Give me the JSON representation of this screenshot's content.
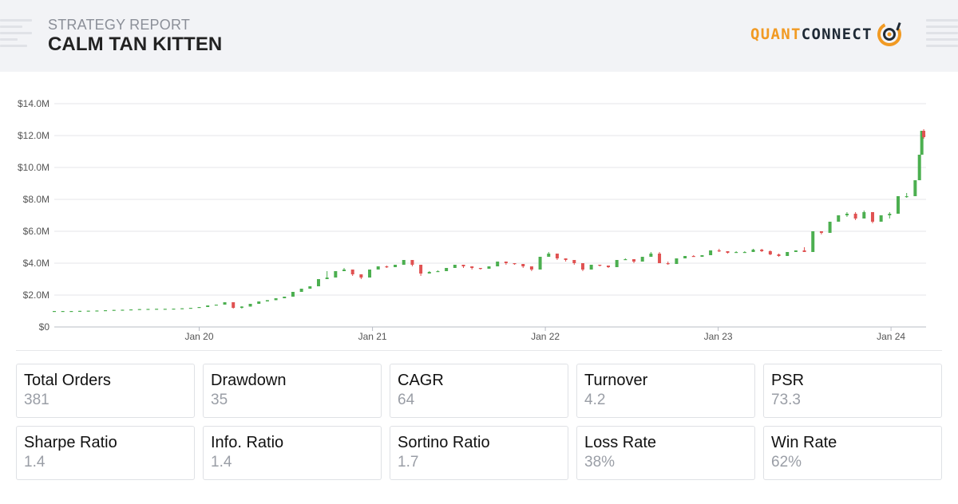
{
  "header": {
    "subtitle": "STRATEGY REPORT",
    "title": "CALM TAN KITTEN",
    "logo": {
      "part1": "QUANT",
      "part2": "CONNECT",
      "accent": "#f19a23",
      "dark": "#1f2a36"
    }
  },
  "chart_data": {
    "type": "candlestick",
    "ylim": [
      0,
      14000000
    ],
    "y_ticks": [
      "$0",
      "$2.0M",
      "$4.0M",
      "$6.0M",
      "$8.0M",
      "$10.0M",
      "$12.0M",
      "$14.0M"
    ],
    "x_range": [
      "2019-03-01",
      "2024-03-15"
    ],
    "x_ticks": [
      {
        "date": "2020-01-01",
        "label": "Jan 20"
      },
      {
        "date": "2021-01-01",
        "label": "Jan 21"
      },
      {
        "date": "2022-01-01",
        "label": "Jan 22"
      },
      {
        "date": "2023-01-01",
        "label": "Jan 23"
      },
      {
        "date": "2024-01-01",
        "label": "Jan 24"
      }
    ],
    "up_color": "#4caf50",
    "down_color": "#e05252",
    "grid": true,
    "series": [
      {
        "values": [
          [
            "2019-03-01",
            1.0,
            1.0,
            1.0,
            1.0
          ],
          [
            "2019-03-19",
            1.0,
            1.0,
            1.0,
            1.0
          ],
          [
            "2019-04-06",
            1.0,
            1.0,
            1.0,
            1.0
          ],
          [
            "2019-04-24",
            1.0,
            1.0,
            1.01,
            1.01
          ],
          [
            "2019-05-12",
            1.01,
            1.01,
            1.02,
            1.02
          ],
          [
            "2019-05-30",
            1.02,
            1.02,
            1.03,
            1.03
          ],
          [
            "2019-06-17",
            1.03,
            1.03,
            1.05,
            1.05
          ],
          [
            "2019-07-05",
            1.05,
            1.05,
            1.07,
            1.07
          ],
          [
            "2019-07-23",
            1.07,
            1.07,
            1.08,
            1.08
          ],
          [
            "2019-08-10",
            1.08,
            1.08,
            1.1,
            1.1
          ],
          [
            "2019-08-28",
            1.1,
            1.1,
            1.12,
            1.12
          ],
          [
            "2019-09-15",
            1.12,
            1.12,
            1.13,
            1.13
          ],
          [
            "2019-10-03",
            1.13,
            1.13,
            1.14,
            1.14
          ],
          [
            "2019-10-21",
            1.14,
            1.14,
            1.14,
            1.14
          ],
          [
            "2019-11-08",
            1.14,
            1.14,
            1.15,
            1.15
          ],
          [
            "2019-11-26",
            1.15,
            1.15,
            1.17,
            1.17
          ],
          [
            "2019-12-14",
            1.17,
            1.17,
            1.2,
            1.2
          ],
          [
            "2020-01-01",
            1.2,
            1.2,
            1.25,
            1.25
          ],
          [
            "2020-01-19",
            1.25,
            1.25,
            1.35,
            1.35
          ],
          [
            "2020-02-06",
            1.35,
            1.35,
            1.4,
            1.4
          ],
          [
            "2020-02-24",
            1.4,
            1.4,
            1.55,
            1.55
          ],
          [
            "2020-03-13",
            1.55,
            1.15,
            1.55,
            1.2
          ],
          [
            "2020-03-31",
            1.2,
            1.15,
            1.3,
            1.28
          ],
          [
            "2020-04-18",
            1.28,
            1.28,
            1.45,
            1.45
          ],
          [
            "2020-05-06",
            1.45,
            1.45,
            1.6,
            1.6
          ],
          [
            "2020-05-24",
            1.6,
            1.6,
            1.68,
            1.68
          ],
          [
            "2020-06-11",
            1.68,
            1.68,
            1.8,
            1.8
          ],
          [
            "2020-06-29",
            1.8,
            1.8,
            1.9,
            1.9
          ],
          [
            "2020-07-17",
            1.9,
            1.9,
            2.2,
            2.2
          ],
          [
            "2020-08-04",
            2.2,
            2.2,
            2.4,
            2.4
          ],
          [
            "2020-08-22",
            2.4,
            2.4,
            2.55,
            2.55
          ],
          [
            "2020-09-09",
            2.55,
            2.55,
            3.0,
            3.0
          ],
          [
            "2020-09-27",
            3.0,
            3.0,
            3.5,
            3.1
          ],
          [
            "2020-10-15",
            3.1,
            3.1,
            3.5,
            3.5
          ],
          [
            "2020-11-02",
            3.5,
            3.5,
            3.7,
            3.6
          ],
          [
            "2020-11-20",
            3.6,
            3.2,
            3.6,
            3.3
          ],
          [
            "2020-12-08",
            3.3,
            3.0,
            3.3,
            3.1
          ],
          [
            "2020-12-26",
            3.1,
            3.1,
            3.6,
            3.6
          ],
          [
            "2021-01-13",
            3.6,
            3.6,
            3.8,
            3.8
          ],
          [
            "2021-01-31",
            3.8,
            3.7,
            3.85,
            3.75
          ],
          [
            "2021-02-18",
            3.75,
            3.75,
            3.9,
            3.9
          ],
          [
            "2021-03-08",
            3.9,
            3.9,
            4.2,
            4.2
          ],
          [
            "2021-03-26",
            4.2,
            3.8,
            4.2,
            3.9
          ],
          [
            "2021-04-13",
            3.9,
            3.2,
            3.9,
            3.35
          ],
          [
            "2021-05-01",
            3.35,
            3.35,
            3.5,
            3.45
          ],
          [
            "2021-05-19",
            3.45,
            3.45,
            3.55,
            3.5
          ],
          [
            "2021-06-06",
            3.5,
            3.5,
            3.7,
            3.7
          ],
          [
            "2021-06-24",
            3.7,
            3.7,
            3.9,
            3.9
          ],
          [
            "2021-07-12",
            3.9,
            3.7,
            3.9,
            3.8
          ],
          [
            "2021-07-30",
            3.8,
            3.6,
            3.8,
            3.7
          ],
          [
            "2021-08-17",
            3.7,
            3.6,
            3.7,
            3.65
          ],
          [
            "2021-09-04",
            3.65,
            3.65,
            3.8,
            3.8
          ],
          [
            "2021-09-22",
            3.8,
            3.8,
            4.1,
            4.1
          ],
          [
            "2021-10-10",
            4.1,
            3.9,
            4.1,
            4.0
          ],
          [
            "2021-10-28",
            4.0,
            3.9,
            4.0,
            3.95
          ],
          [
            "2021-11-15",
            3.95,
            3.7,
            3.95,
            3.8
          ],
          [
            "2021-12-03",
            3.8,
            3.5,
            3.8,
            3.6
          ],
          [
            "2021-12-21",
            3.6,
            3.6,
            4.4,
            4.4
          ],
          [
            "2022-01-08",
            4.4,
            4.4,
            4.7,
            4.6
          ],
          [
            "2022-01-26",
            4.6,
            4.2,
            4.6,
            4.3
          ],
          [
            "2022-02-13",
            4.3,
            4.1,
            4.3,
            4.2
          ],
          [
            "2022-03-03",
            4.2,
            3.9,
            4.2,
            4.0
          ],
          [
            "2022-03-21",
            4.0,
            3.5,
            4.0,
            3.6
          ],
          [
            "2022-04-08",
            3.6,
            3.6,
            3.9,
            3.9
          ],
          [
            "2022-04-26",
            3.9,
            3.8,
            3.9,
            3.85
          ],
          [
            "2022-05-14",
            3.85,
            3.7,
            3.85,
            3.75
          ],
          [
            "2022-06-01",
            3.75,
            3.75,
            4.2,
            4.2
          ],
          [
            "2022-06-19",
            4.2,
            4.2,
            4.3,
            4.25
          ],
          [
            "2022-07-07",
            4.25,
            4.0,
            4.25,
            4.1
          ],
          [
            "2022-07-25",
            4.1,
            4.1,
            4.4,
            4.4
          ],
          [
            "2022-08-12",
            4.4,
            4.4,
            4.7,
            4.6
          ],
          [
            "2022-08-30",
            4.6,
            4.0,
            4.7,
            4.0
          ],
          [
            "2022-09-17",
            4.0,
            3.9,
            4.1,
            3.95
          ],
          [
            "2022-10-05",
            3.95,
            3.95,
            4.3,
            4.3
          ],
          [
            "2022-10-23",
            4.3,
            4.3,
            4.45,
            4.45
          ],
          [
            "2022-11-10",
            4.45,
            4.4,
            4.5,
            4.4
          ],
          [
            "2022-11-28",
            4.4,
            4.4,
            4.5,
            4.5
          ],
          [
            "2022-12-16",
            4.5,
            4.5,
            4.8,
            4.8
          ],
          [
            "2023-01-03",
            4.8,
            4.7,
            4.9,
            4.75
          ],
          [
            "2023-01-21",
            4.75,
            4.6,
            4.75,
            4.65
          ],
          [
            "2023-02-08",
            4.65,
            4.65,
            4.75,
            4.7
          ],
          [
            "2023-02-26",
            4.7,
            4.65,
            4.75,
            4.7
          ],
          [
            "2023-03-16",
            4.7,
            4.7,
            4.9,
            4.85
          ],
          [
            "2023-04-03",
            4.85,
            4.7,
            4.9,
            4.75
          ],
          [
            "2023-04-21",
            4.75,
            4.5,
            4.8,
            4.55
          ],
          [
            "2023-05-09",
            4.55,
            4.4,
            4.6,
            4.45
          ],
          [
            "2023-05-27",
            4.45,
            4.45,
            4.7,
            4.7
          ],
          [
            "2023-06-14",
            4.7,
            4.7,
            4.8,
            4.8
          ],
          [
            "2023-07-02",
            4.8,
            4.7,
            5.0,
            4.7
          ],
          [
            "2023-07-20",
            4.7,
            4.7,
            6.0,
            6.0
          ],
          [
            "2023-08-07",
            6.0,
            5.8,
            6.0,
            5.9
          ],
          [
            "2023-08-25",
            5.9,
            5.9,
            6.6,
            6.6
          ],
          [
            "2023-09-12",
            6.6,
            6.6,
            7.0,
            7.0
          ],
          [
            "2023-09-30",
            7.0,
            6.9,
            7.2,
            7.1
          ],
          [
            "2023-10-18",
            7.1,
            6.7,
            7.2,
            6.8
          ],
          [
            "2023-11-05",
            6.8,
            6.8,
            7.3,
            7.2
          ],
          [
            "2023-11-23",
            7.2,
            6.5,
            7.2,
            6.6
          ],
          [
            "2023-12-11",
            6.6,
            6.6,
            7.0,
            7.0
          ],
          [
            "2023-12-29",
            7.0,
            6.8,
            7.2,
            7.1
          ],
          [
            "2024-01-16",
            7.1,
            7.1,
            8.2,
            8.2
          ],
          [
            "2024-02-03",
            8.2,
            8.1,
            8.4,
            8.2
          ],
          [
            "2024-02-21",
            8.2,
            8.2,
            9.2,
            9.2
          ],
          [
            "2024-03-01",
            9.2,
            9.2,
            10.8,
            10.8
          ],
          [
            "2024-03-06",
            10.8,
            10.8,
            12.3,
            12.3
          ],
          [
            "2024-03-10",
            12.3,
            11.8,
            12.4,
            11.9
          ]
        ]
      }
    ]
  },
  "metrics": [
    {
      "label": "Total Orders",
      "value": "381"
    },
    {
      "label": "Drawdown",
      "value": "35"
    },
    {
      "label": "CAGR",
      "value": "64"
    },
    {
      "label": "Turnover",
      "value": "4.2"
    },
    {
      "label": "PSR",
      "value": "73.3"
    },
    {
      "label": "Sharpe Ratio",
      "value": "1.4"
    },
    {
      "label": "Info. Ratio",
      "value": "1.4"
    },
    {
      "label": "Sortino Ratio",
      "value": "1.7"
    },
    {
      "label": "Loss Rate",
      "value": "38%"
    },
    {
      "label": "Win Rate",
      "value": "62%"
    }
  ]
}
